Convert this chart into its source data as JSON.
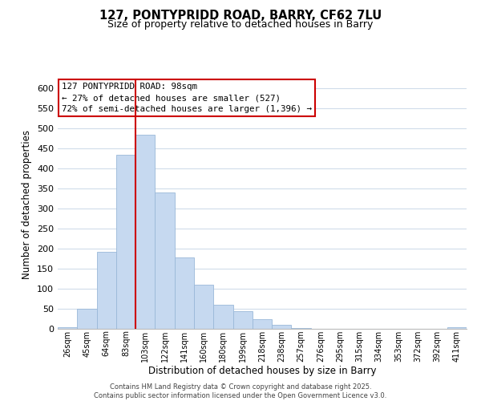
{
  "title": "127, PONTYPRIDD ROAD, BARRY, CF62 7LU",
  "subtitle": "Size of property relative to detached houses in Barry",
  "xlabel": "Distribution of detached houses by size in Barry",
  "ylabel": "Number of detached properties",
  "bar_labels": [
    "26sqm",
    "45sqm",
    "64sqm",
    "83sqm",
    "103sqm",
    "122sqm",
    "141sqm",
    "160sqm",
    "180sqm",
    "199sqm",
    "218sqm",
    "238sqm",
    "257sqm",
    "276sqm",
    "295sqm",
    "315sqm",
    "334sqm",
    "353sqm",
    "372sqm",
    "392sqm",
    "411sqm"
  ],
  "bar_values": [
    5,
    50,
    192,
    435,
    484,
    340,
    178,
    110,
    61,
    44,
    24,
    10,
    3,
    1,
    1,
    0,
    0,
    0,
    0,
    0,
    5
  ],
  "bar_color": "#c6d9f0",
  "bar_edge_color": "#9ab8d8",
  "vline_color": "#cc0000",
  "vline_index": 4,
  "annotation_text_line1": "127 PONTYPRIDD ROAD: 98sqm",
  "annotation_text_line2": "← 27% of detached houses are smaller (527)",
  "annotation_text_line3": "72% of semi-detached houses are larger (1,396) →",
  "ylim": [
    0,
    620
  ],
  "yticks": [
    0,
    50,
    100,
    150,
    200,
    250,
    300,
    350,
    400,
    450,
    500,
    550,
    600
  ],
  "grid_color": "#d0dcea",
  "background_color": "#ffffff",
  "footer_line1": "Contains HM Land Registry data © Crown copyright and database right 2025.",
  "footer_line2": "Contains public sector information licensed under the Open Government Licence v3.0."
}
